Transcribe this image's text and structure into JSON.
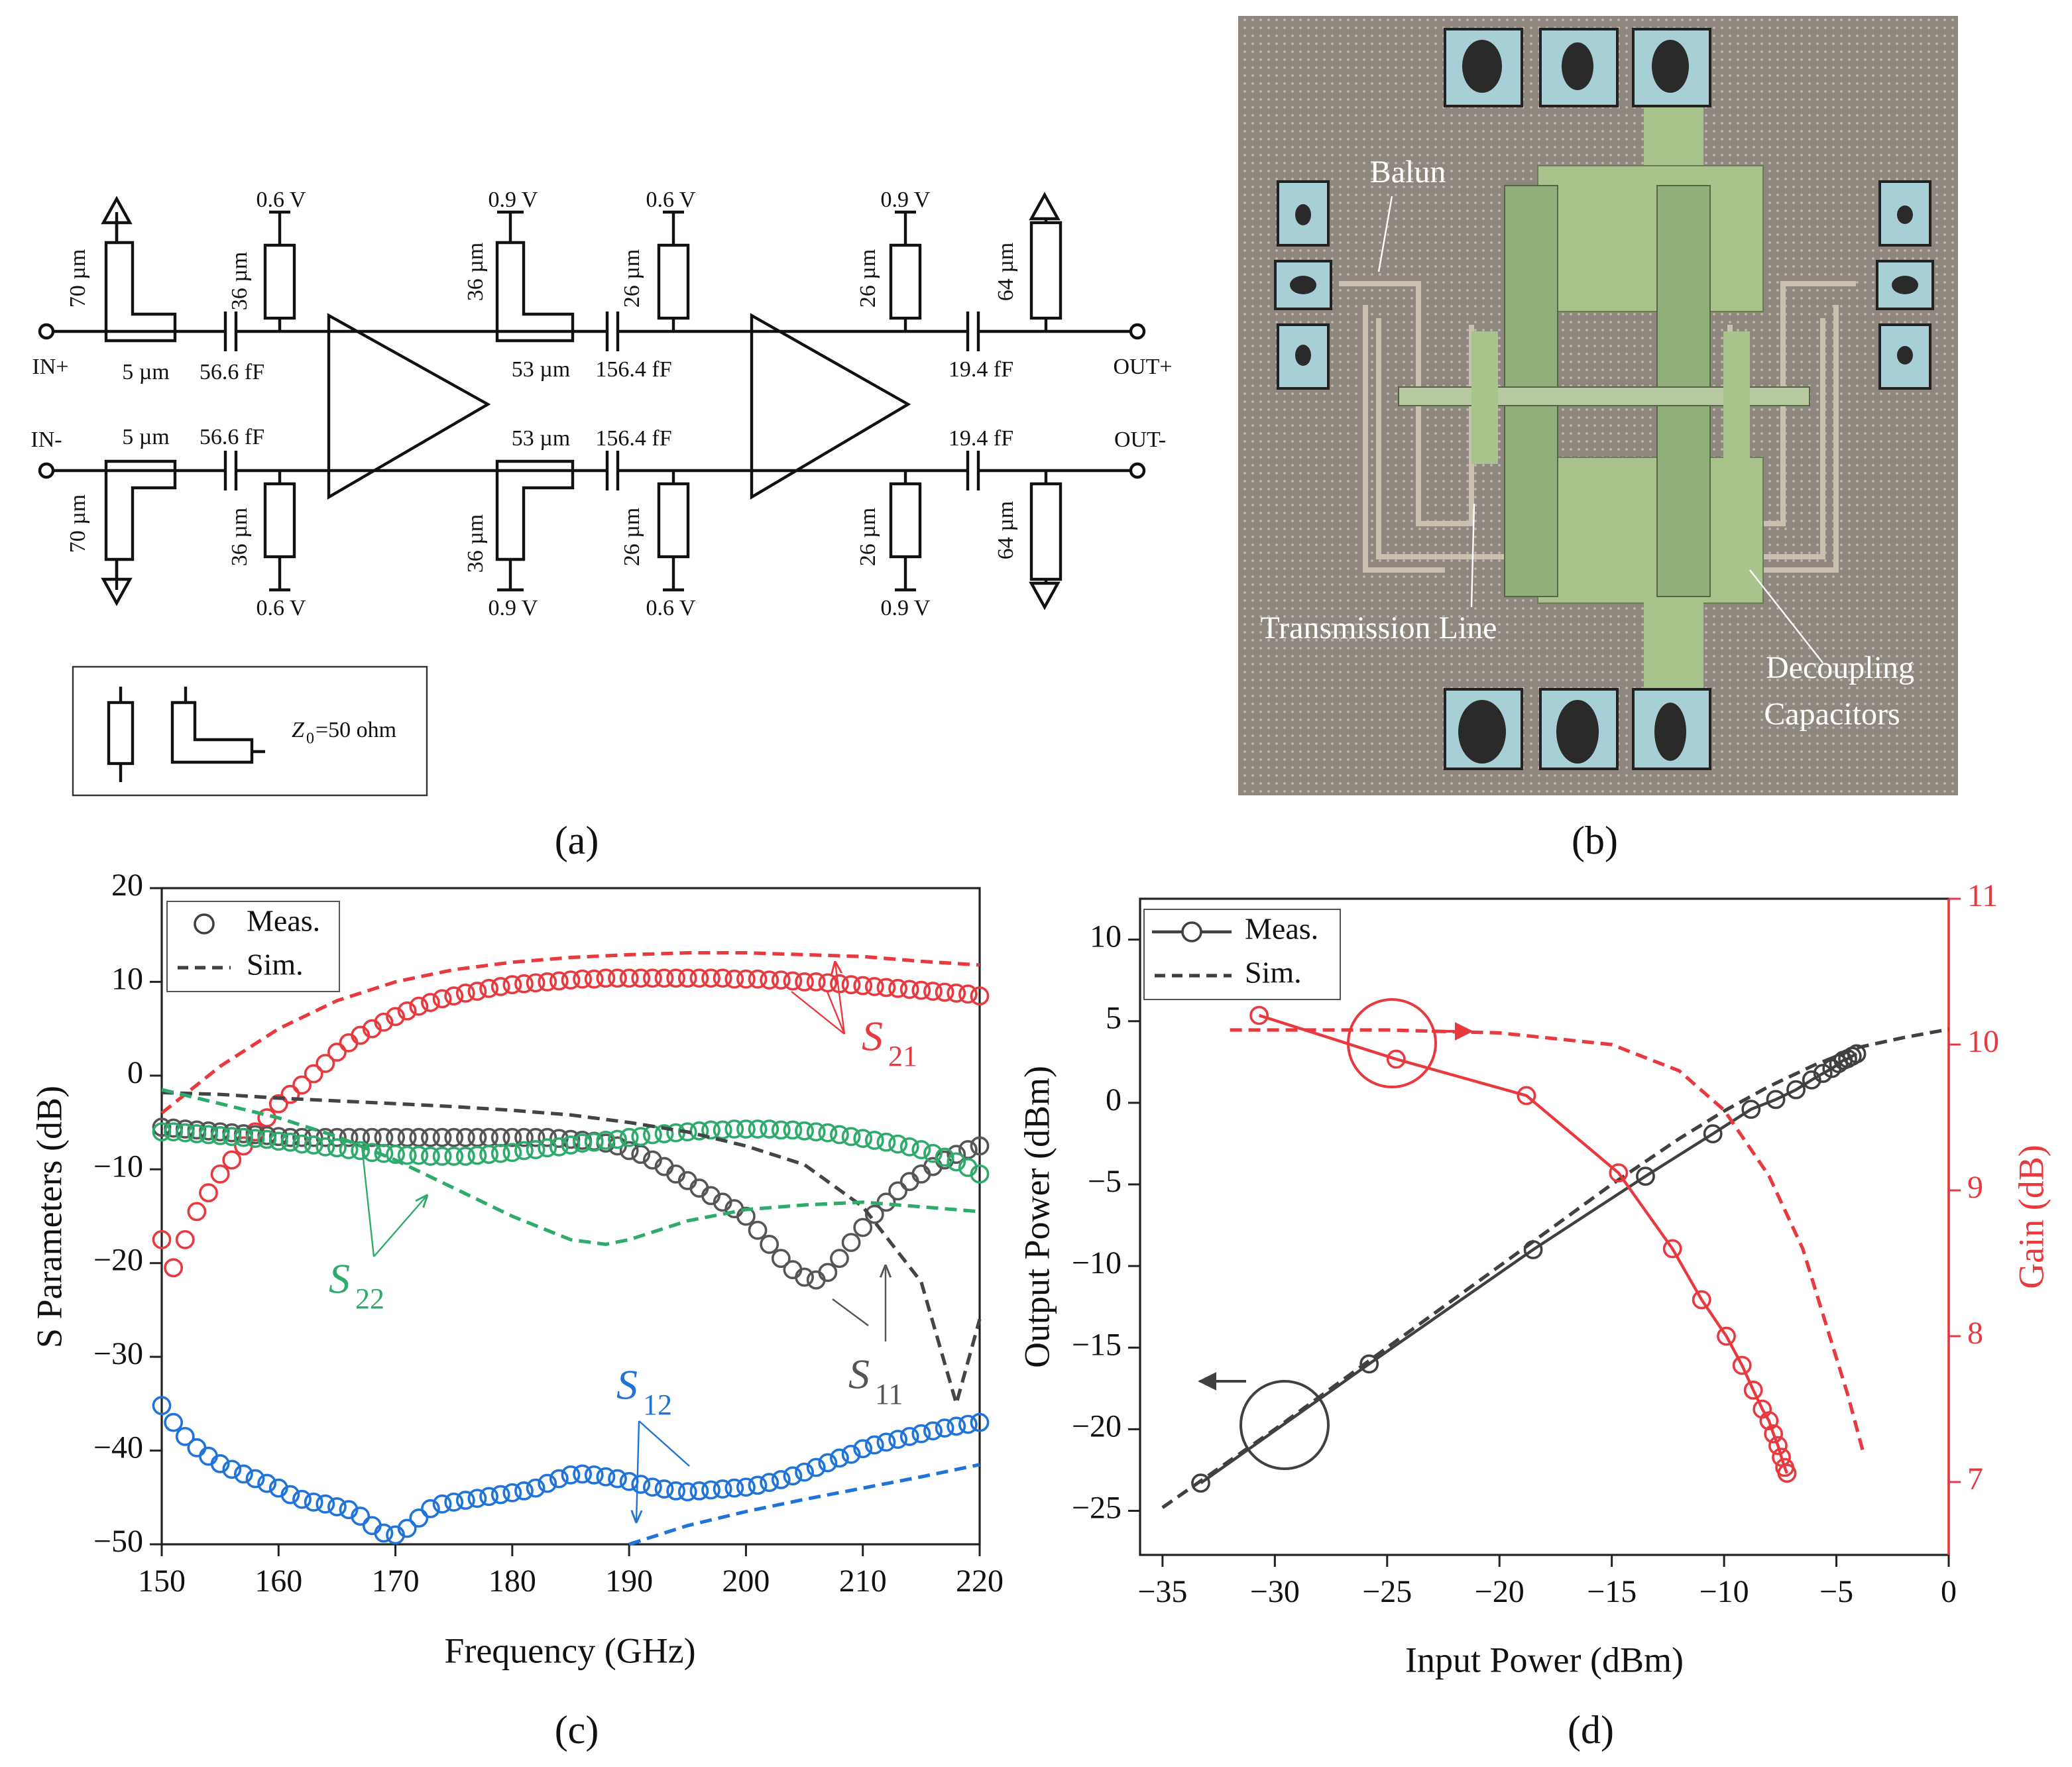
{
  "schematic": {
    "labels": [
      "0.6 V",
      "0.9 V",
      "0.6 V",
      "0.9 V",
      "70 µm",
      "36 µm",
      "36 µm",
      "26 µm",
      "26 µm",
      "64 µm",
      "5 µm",
      "56.6 fF",
      "53 µm",
      "156.4 fF",
      "19.4 fF",
      "IN+",
      "OUT+",
      "IN-",
      "5 µm",
      "56.6 fF",
      "53 µm",
      "156.4 fF",
      "19.4 fF",
      "OUT-",
      "70 µm",
      "36 µm",
      "36 µm",
      "26 µm",
      "26 µm",
      "64 µm",
      "0.6 V",
      "0.9 V",
      "0.6 V",
      "0.9 V"
    ],
    "legend": {
      "symbol": "Z",
      "subscript": "0",
      "text": "=50 ohm"
    },
    "caption": "(a)"
  },
  "micrograph": {
    "labels": [
      "Balun",
      "Transmission Line",
      "Decoupling",
      "Capacitors"
    ],
    "caption": "(b)"
  },
  "chart_data": [
    {
      "type": "scatter",
      "caption": "(c)",
      "xlabel": "Frequency (GHz)",
      "ylabel": "S Parameters (dB)",
      "xlim": [
        150,
        220
      ],
      "xticks": [
        150,
        160,
        170,
        180,
        190,
        200,
        210,
        220
      ],
      "ylim": [
        -50,
        20
      ],
      "yticks": [
        {
          "value": -50,
          "label": "−50"
        },
        {
          "value": -40,
          "label": "−40"
        },
        {
          "value": -30,
          "label": "−30"
        },
        {
          "value": -20,
          "label": "−20"
        },
        {
          "value": -10,
          "label": "−10"
        },
        0,
        10,
        20
      ],
      "legend_corner": "upper left",
      "legend_color": "#404040",
      "legend": [
        {
          "label": "Meas.",
          "marker": true
        },
        {
          "label": "Sim.",
          "dashed": true
        }
      ],
      "annotations": [
        {
          "symbol": "S",
          "subscript": "21",
          "color": "#e8393f"
        },
        {
          "symbol": "S",
          "subscript": "22",
          "color": "#2eaa6a"
        },
        {
          "symbol": "S",
          "subscript": "11",
          "color": "#555555"
        },
        {
          "symbol": "S",
          "subscript": "12",
          "color": "#1f73d9"
        }
      ],
      "x": [
        150,
        151,
        152,
        153,
        154,
        155,
        156,
        157,
        158,
        159,
        160,
        161,
        162,
        163,
        164,
        165,
        166,
        167,
        168,
        169,
        170,
        171,
        172,
        173,
        174,
        175,
        176,
        177,
        178,
        179,
        180,
        181,
        182,
        183,
        184,
        185,
        186,
        187,
        188,
        189,
        190,
        191,
        192,
        193,
        194,
        195,
        196,
        197,
        198,
        199,
        200,
        201,
        202,
        203,
        204,
        205,
        206,
        207,
        208,
        209,
        210,
        211,
        212,
        213,
        214,
        215,
        216,
        217,
        218,
        219,
        220
      ],
      "series": [
        {
          "color": "#e8393f",
          "marker": true,
          "values": [
            -17.5,
            -20.5,
            -17.5,
            -14.5,
            -12.5,
            -10.5,
            -9,
            -7.5,
            -6,
            -4.5,
            -3,
            -2,
            -1,
            0.2,
            1.3,
            2.5,
            3.5,
            4.3,
            5,
            5.7,
            6.3,
            6.9,
            7.4,
            7.8,
            8.2,
            8.5,
            8.8,
            9,
            9.3,
            9.5,
            9.7,
            9.8,
            9.9,
            10,
            10.1,
            10.2,
            10.3,
            10.3,
            10.4,
            10.4,
            10.4,
            10.4,
            10.4,
            10.4,
            10.4,
            10.4,
            10.4,
            10.4,
            10.4,
            10.3,
            10.3,
            10.3,
            10.2,
            10.2,
            10.1,
            10,
            10,
            9.9,
            9.8,
            9.7,
            9.6,
            9.5,
            9.4,
            9.3,
            9.2,
            9.1,
            9,
            8.9,
            8.8,
            8.7,
            8.5
          ]
        },
        {
          "color": "#555555",
          "marker": true,
          "values": [
            -5.5,
            -5.6,
            -5.7,
            -5.8,
            -5.9,
            -6,
            -6.1,
            -6.2,
            -6.3,
            -6.4,
            -6.5,
            -6.6,
            -6.6,
            -6.6,
            -6.6,
            -6.6,
            -6.6,
            -6.6,
            -6.6,
            -6.6,
            -6.6,
            -6.6,
            -6.6,
            -6.6,
            -6.6,
            -6.6,
            -6.6,
            -6.6,
            -6.6,
            -6.6,
            -6.6,
            -6.6,
            -6.6,
            -6.6,
            -6.7,
            -6.8,
            -6.9,
            -7,
            -7.2,
            -7.5,
            -8,
            -8.4,
            -9,
            -9.7,
            -10.5,
            -11.2,
            -12,
            -12.8,
            -13.5,
            -14.2,
            -15,
            -16.5,
            -18,
            -19.5,
            -20.7,
            -21.5,
            -21.8,
            -21,
            -19.5,
            -17.8,
            -16.2,
            -14.8,
            -13.5,
            -12.3,
            -11.3,
            -10.5,
            -9.7,
            -9,
            -8.4,
            -7.9,
            -7.5
          ]
        },
        {
          "color": "#2eaa6a",
          "marker": true,
          "values": [
            -6,
            -6,
            -6.1,
            -6.2,
            -6.3,
            -6.4,
            -6.5,
            -6.6,
            -6.7,
            -6.8,
            -7,
            -7.1,
            -7.3,
            -7.4,
            -7.6,
            -7.7,
            -7.9,
            -8,
            -8.2,
            -8.3,
            -8.4,
            -8.5,
            -8.5,
            -8.6,
            -8.6,
            -8.6,
            -8.6,
            -8.5,
            -8.4,
            -8.3,
            -8.2,
            -8,
            -7.9,
            -7.7,
            -7.6,
            -7.4,
            -7.2,
            -7.1,
            -6.9,
            -6.8,
            -6.6,
            -6.5,
            -6.3,
            -6.2,
            -6.1,
            -6,
            -5.9,
            -5.8,
            -5.8,
            -5.7,
            -5.7,
            -5.7,
            -5.7,
            -5.8,
            -5.8,
            -5.9,
            -6,
            -6.1,
            -6.3,
            -6.5,
            -6.7,
            -6.9,
            -7.1,
            -7.3,
            -7.6,
            -7.9,
            -8.3,
            -8.7,
            -9.2,
            -9.8,
            -10.5
          ]
        },
        {
          "color": "#1f73d9",
          "marker": true,
          "values": [
            -35.2,
            -37,
            -38.5,
            -39.7,
            -40.6,
            -41.4,
            -42,
            -42.5,
            -43,
            -43.5,
            -44,
            -44.7,
            -45.2,
            -45.5,
            -45.7,
            -46,
            -46.3,
            -47,
            -48,
            -48.8,
            -49,
            -48.3,
            -47.2,
            -46.2,
            -45.7,
            -45.5,
            -45.3,
            -45.1,
            -44.9,
            -44.7,
            -44.5,
            -44.3,
            -44,
            -43.5,
            -43,
            -42.6,
            -42.5,
            -42.6,
            -42.8,
            -43,
            -43.3,
            -43.6,
            -43.9,
            -44.1,
            -44.3,
            -44.4,
            -44.3,
            -44.2,
            -44.1,
            -44,
            -43.9,
            -43.7,
            -43.4,
            -43.1,
            -42.7,
            -42.3,
            -41.8,
            -41.3,
            -40.8,
            -40.4,
            -39.8,
            -39.4,
            -39.1,
            -38.8,
            -38.5,
            -38.2,
            -37.9,
            -37.6,
            -37.4,
            -37.2,
            -37
          ]
        },
        {
          "color": "#e8393f",
          "dashed": true,
          "x": [
            150,
            155,
            160,
            165,
            170,
            175,
            180,
            185,
            190,
            195,
            200,
            205,
            210,
            215,
            220
          ],
          "values": [
            -4,
            1,
            5,
            8,
            10,
            11.3,
            12.1,
            12.6,
            12.9,
            13.1,
            13.1,
            12.9,
            12.7,
            12.2,
            11.8
          ]
        },
        {
          "color": "#444444",
          "dashed": true,
          "x": [
            150,
            155,
            160,
            165,
            170,
            175,
            180,
            185,
            190,
            195,
            200,
            205,
            210,
            215,
            218,
            220
          ],
          "values": [
            -1.8,
            -2,
            -2.4,
            -2.7,
            -3,
            -3.3,
            -3.7,
            -4.2,
            -5,
            -6,
            -7.5,
            -9.5,
            -14,
            -22,
            -35,
            -26
          ]
        },
        {
          "color": "#2eaa6a",
          "dashed": true,
          "x": [
            150,
            155,
            160,
            165,
            170,
            175,
            180,
            185,
            188,
            190,
            195,
            200,
            205,
            210,
            215,
            220
          ],
          "values": [
            -1.5,
            -3,
            -4.5,
            -6.5,
            -9,
            -12,
            -15,
            -17.5,
            -18,
            -17.5,
            -15.5,
            -14.3,
            -13.8,
            -13.5,
            -14,
            -14.5
          ]
        },
        {
          "color": "#1f73d9",
          "dashed": true,
          "x": [
            190,
            195,
            200,
            205,
            210,
            215,
            220
          ],
          "values": [
            -50,
            -48,
            -46.5,
            -45.2,
            -44,
            -42.8,
            -41.5
          ]
        }
      ]
    },
    {
      "type": "line",
      "caption": "(d)",
      "xlabel": "Input Power (dBm)",
      "ylabel": "Output Power (dBm)",
      "y2label": "Gain (dB)",
      "y2_color": "#e8393f",
      "xlim": [
        -36,
        0
      ],
      "xticks": [
        {
          "value": -35,
          "label": "−35"
        },
        {
          "value": -30,
          "label": "−30"
        },
        {
          "value": -25,
          "label": "−25"
        },
        {
          "value": -20,
          "label": "−20"
        },
        {
          "value": -15,
          "label": "−15"
        },
        {
          "value": -10,
          "label": "−10"
        },
        {
          "value": -5,
          "label": "−5"
        },
        0
      ],
      "ylim": [
        -27.7,
        12.5
      ],
      "yticks": [
        {
          "value": -25,
          "label": "−25"
        },
        {
          "value": -20,
          "label": "−20"
        },
        {
          "value": -15,
          "label": "−15"
        },
        {
          "value": -10,
          "label": "−10"
        },
        {
          "value": -5,
          "label": "−5"
        },
        0,
        5,
        10
      ],
      "y2lim": [
        6.5,
        11
      ],
      "y2ticks": [
        7,
        8,
        9,
        10,
        11
      ],
      "legend_corner": "upper left",
      "legend_color": "#404040",
      "legend": [
        {
          "label": "Meas.",
          "marker": true,
          "line": true
        },
        {
          "label": "Sim.",
          "dashed": true
        }
      ],
      "series": [
        {
          "color": "#404040",
          "marker": true,
          "line": true,
          "x": [
            -33.3,
            -25.8,
            -18.5,
            -13.5,
            -10.5,
            -8.8,
            -7.7,
            -6.8,
            -6.1,
            -5.6,
            -5.2,
            -4.9,
            -4.7,
            -4.5,
            -4.3,
            -4.1
          ],
          "values": [
            -23.3,
            -16,
            -9,
            -4.5,
            -1.9,
            -0.4,
            0.2,
            0.8,
            1.4,
            1.8,
            2.1,
            2.4,
            2.6,
            2.7,
            2.85,
            3
          ]
        },
        {
          "color": "#404040",
          "dashed": true,
          "x": [
            -35,
            -30,
            -25,
            -20,
            -15,
            -12,
            -10,
            -8,
            -6,
            -4,
            -2,
            0
          ],
          "values": [
            -24.8,
            -20,
            -15,
            -10,
            -5,
            -2.2,
            -0.5,
            1,
            2.3,
            3.4,
            4,
            4.5
          ]
        },
        {
          "color": "#e8393f",
          "marker": true,
          "line": true,
          "axis": "y2",
          "x": [
            -30.7,
            -24.6,
            -18.8,
            -14.7,
            -12.3,
            -11,
            -9.9,
            -9.2,
            -8.7,
            -8.3,
            -8,
            -7.8,
            -7.6,
            -7.45,
            -7.3,
            -7.2
          ],
          "values": [
            10.2,
            9.9,
            9.65,
            9.12,
            8.6,
            8.25,
            8,
            7.8,
            7.63,
            7.5,
            7.42,
            7.33,
            7.25,
            7.17,
            7.1,
            7.06
          ]
        },
        {
          "color": "#e8393f",
          "dashed": true,
          "axis": "y2",
          "x": [
            -32,
            -25,
            -20,
            -15,
            -12,
            -10,
            -8,
            -6.5,
            -5.5,
            -4.5,
            -3.8
          ],
          "values": [
            10.1,
            10.1,
            10.08,
            10,
            9.82,
            9.55,
            9.1,
            8.6,
            8.1,
            7.6,
            7.2
          ]
        }
      ]
    }
  ]
}
